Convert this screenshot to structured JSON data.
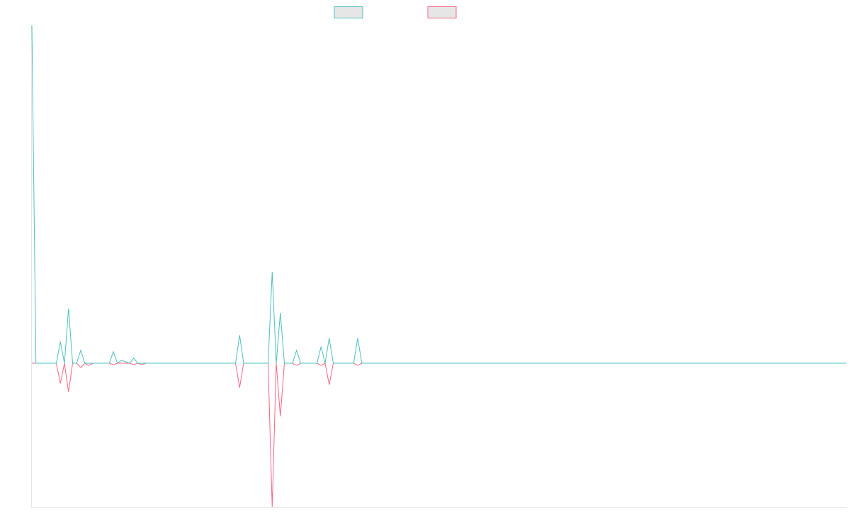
{
  "chart_data": {
    "type": "line",
    "title": "",
    "xlabel": "",
    "ylabel": "",
    "grid": false,
    "legend_position": "top-center",
    "x": [
      0,
      1,
      6,
      7,
      8,
      9,
      10,
      11,
      12,
      13,
      14,
      15,
      19,
      20,
      21,
      22,
      24,
      25,
      26,
      27,
      28,
      29,
      50,
      51,
      52,
      58,
      59,
      60,
      61,
      62,
      64,
      65,
      66,
      70,
      71,
      72,
      73,
      74,
      75,
      79,
      80,
      81,
      200
    ],
    "ylim": [
      -200,
      470
    ],
    "series": [
      {
        "color": "#4bc0c0",
        "values": [
          470,
          0,
          0,
          30,
          0,
          76,
          0,
          0,
          18,
          0,
          0,
          0,
          0,
          16,
          0,
          4,
          0,
          7,
          0,
          0,
          0,
          0,
          0,
          39,
          0,
          0,
          127,
          0,
          70,
          0,
          0,
          18,
          0,
          0,
          23,
          0,
          35,
          0,
          0,
          0,
          35,
          0,
          0
        ]
      },
      {
        "color": "#ff6384",
        "values": [
          0,
          0,
          0,
          -28,
          0,
          -40,
          0,
          0,
          -6,
          0,
          -3,
          0,
          0,
          -2,
          0,
          0,
          0,
          -2,
          0,
          -2,
          0,
          0,
          0,
          -34,
          0,
          0,
          -200,
          0,
          -74,
          0,
          0,
          -3,
          0,
          0,
          -3,
          0,
          -30,
          0,
          0,
          0,
          -3,
          0,
          0
        ]
      }
    ]
  }
}
